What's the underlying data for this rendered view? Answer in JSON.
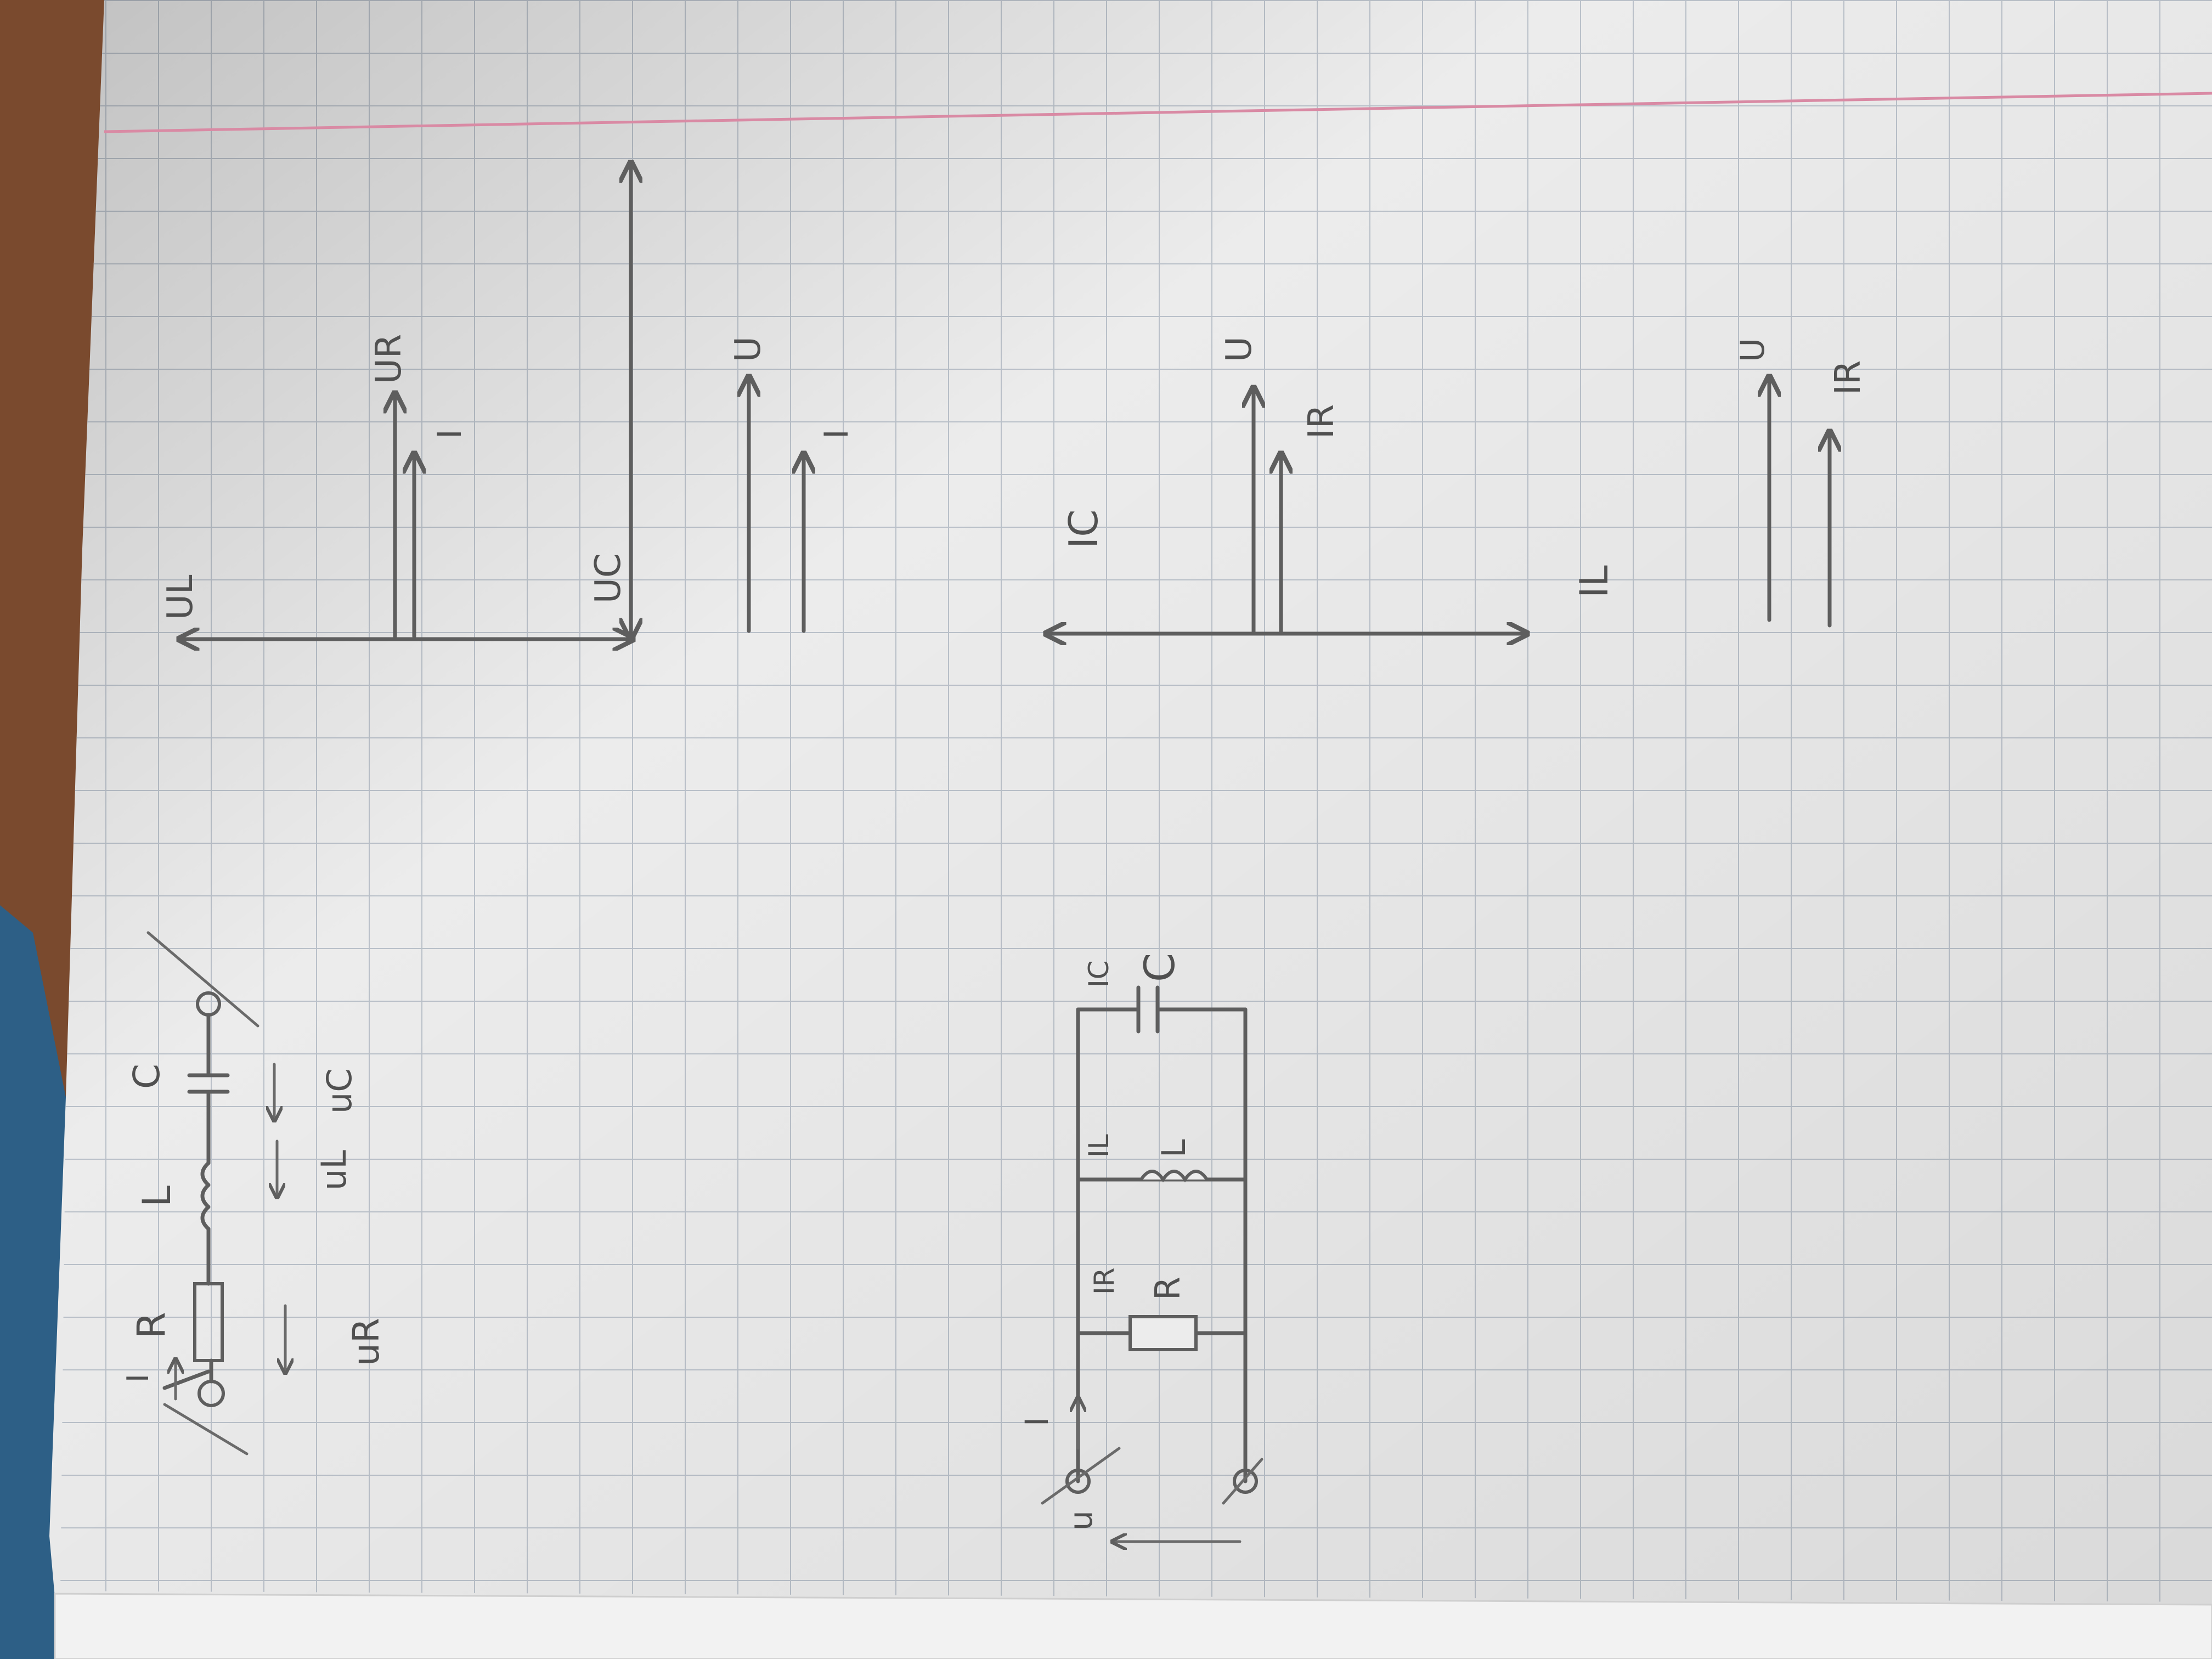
{
  "series_circuit": {
    "labels": {
      "R": "R",
      "L": "L",
      "C": "C",
      "I": "I",
      "uR": "uR",
      "uL": "uL",
      "uC": "uC"
    }
  },
  "series_phasor_1": {
    "labels": {
      "UL": "UL",
      "UR": "UR",
      "I": "I",
      "UC": "UC"
    }
  },
  "series_phasor_2": {
    "labels": {
      "U": "U",
      "I": "I"
    }
  },
  "parallel_circuit": {
    "labels": {
      "u": "u",
      "I": "I",
      "IR": "IR",
      "IL": "IL",
      "IC": "IC",
      "R": "R",
      "L": "L",
      "C": "C"
    }
  },
  "parallel_phasor_1": {
    "labels": {
      "IC": "IC",
      "U": "U",
      "IR": "IR",
      "IL": "IL"
    }
  },
  "parallel_phasor_2": {
    "labels": {
      "U": "U",
      "IR": "IR"
    }
  },
  "colors": {
    "paper": "#ececec",
    "grid": "#b9c0c9",
    "margin_line": "#d98aa4",
    "pencil": "#5e5e5e",
    "table_wood": "#7a4a2e",
    "cloth": "#2d5f86"
  }
}
